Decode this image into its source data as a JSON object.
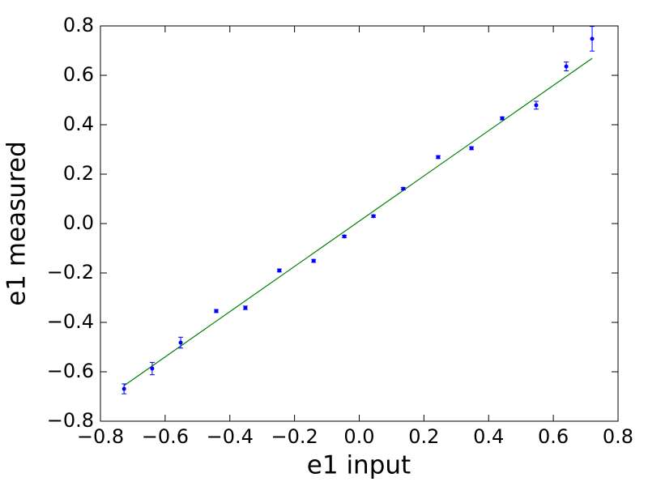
{
  "chart_data": {
    "type": "scatter",
    "xlabel": "e1 input",
    "ylabel": "e1 measured",
    "x": [
      -0.727,
      -0.64,
      -0.552,
      -0.442,
      -0.352,
      -0.247,
      -0.141,
      -0.046,
      0.044,
      0.136,
      0.244,
      0.347,
      0.442,
      0.547,
      0.64,
      0.72
    ],
    "values": [
      -0.669,
      -0.587,
      -0.482,
      -0.354,
      -0.341,
      -0.19,
      -0.151,
      -0.052,
      0.03,
      0.141,
      0.269,
      0.305,
      0.426,
      0.479,
      0.636,
      0.748
    ],
    "errors": [
      0.02,
      0.025,
      0.022,
      0.006,
      0.007,
      0.006,
      0.006,
      0.005,
      0.005,
      0.005,
      0.006,
      0.006,
      0.006,
      0.016,
      0.018,
      0.05
    ],
    "color": "#0000ff",
    "fit": {
      "x": [
        -0.727,
        0.72
      ],
      "values": [
        -0.656,
        0.669
      ],
      "color": "#008000"
    },
    "xlim": [
      -0.8,
      0.8
    ],
    "ylim": [
      -0.8,
      0.8
    ],
    "xticks": [
      {
        "value": -0.8,
        "label": "−0.8"
      },
      {
        "value": -0.6,
        "label": "−0.6"
      },
      {
        "value": -0.4,
        "label": "−0.4"
      },
      {
        "value": -0.2,
        "label": "−0.2"
      },
      {
        "value": 0,
        "label": "0.0"
      },
      0.2,
      0.4,
      0.6,
      0.8
    ],
    "yticks": [
      {
        "value": -0.8,
        "label": "−0.8"
      },
      {
        "value": -0.6,
        "label": "−0.6"
      },
      {
        "value": -0.4,
        "label": "−0.4"
      },
      {
        "value": -0.2,
        "label": "−0.2"
      },
      {
        "value": 0,
        "label": "0.0"
      },
      0.2,
      0.4,
      0.6,
      0.8
    ]
  }
}
